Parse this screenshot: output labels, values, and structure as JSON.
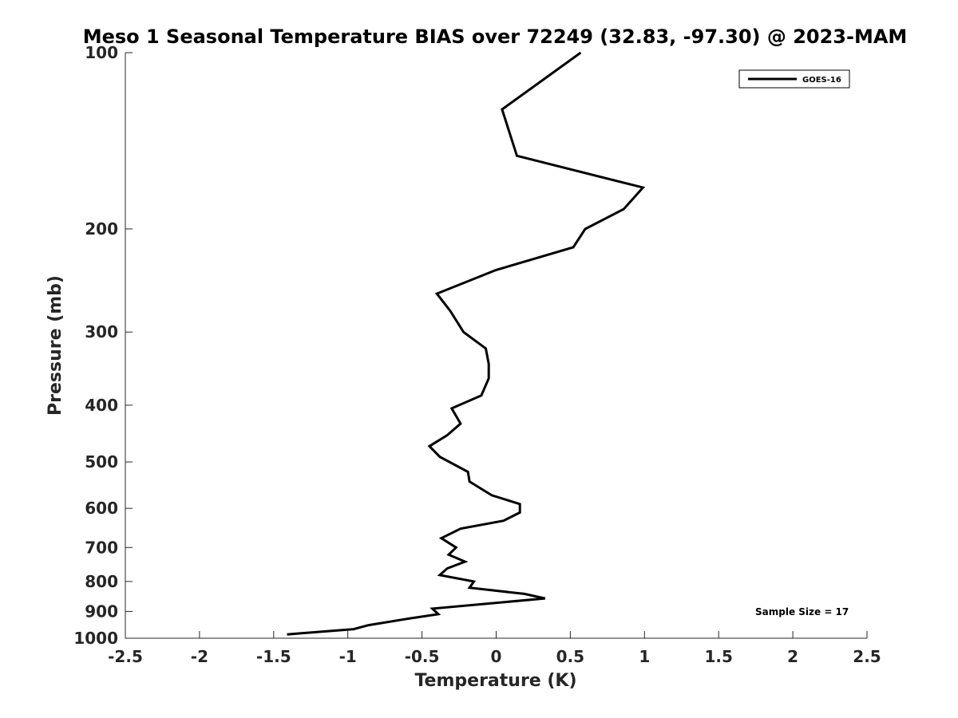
{
  "chart_data": {
    "type": "line",
    "title": "Meso 1 Seasonal Temperature BIAS over 72249 (32.83, -97.30) @ 2023-MAM",
    "xlabel": "Temperature (K)",
    "ylabel": "Pressure (mb)",
    "xlim": [
      -2.5,
      2.5
    ],
    "ylim": [
      1000,
      100
    ],
    "y_scale": "log",
    "y_reversed": true,
    "x_ticks": [
      "-2.5",
      "-2",
      "-1.5",
      "-1",
      "-0.5",
      "0",
      "0.5",
      "1",
      "1.5",
      "2",
      "2.5"
    ],
    "y_ticks": [
      "100",
      "200",
      "300",
      "400",
      "500",
      "600",
      "700",
      "800",
      "900",
      "1000"
    ],
    "grid": false,
    "legend": {
      "position": "top-right",
      "entries": [
        "GOES-16"
      ]
    },
    "annotation": "Sample Size = 17",
    "series": [
      {
        "name": "GOES-16",
        "color": "#000000",
        "points": [
          [
            0.57,
            100
          ],
          [
            0.04,
            125
          ],
          [
            0.14,
            150
          ],
          [
            0.99,
            170
          ],
          [
            0.86,
            185
          ],
          [
            0.6,
            200
          ],
          [
            0.52,
            215
          ],
          [
            0.0,
            235
          ],
          [
            -0.4,
            258
          ],
          [
            -0.31,
            276
          ],
          [
            -0.22,
            300
          ],
          [
            -0.07,
            320
          ],
          [
            -0.05,
            340
          ],
          [
            -0.05,
            360
          ],
          [
            -0.1,
            385
          ],
          [
            -0.3,
            405
          ],
          [
            -0.24,
            430
          ],
          [
            -0.33,
            450
          ],
          [
            -0.45,
            470
          ],
          [
            -0.38,
            490
          ],
          [
            -0.19,
            520
          ],
          [
            -0.18,
            540
          ],
          [
            -0.03,
            570
          ],
          [
            0.16,
            590
          ],
          [
            0.16,
            610
          ],
          [
            0.05,
            630
          ],
          [
            -0.24,
            650
          ],
          [
            -0.37,
            675
          ],
          [
            -0.27,
            700
          ],
          [
            -0.32,
            720
          ],
          [
            -0.21,
            740
          ],
          [
            -0.33,
            760
          ],
          [
            -0.38,
            780
          ],
          [
            -0.15,
            800
          ],
          [
            -0.18,
            820
          ],
          [
            0.19,
            840
          ],
          [
            0.33,
            855
          ],
          [
            -0.43,
            890
          ],
          [
            -0.39,
            910
          ],
          [
            -0.58,
            925
          ],
          [
            -0.86,
            950
          ],
          [
            -0.96,
            965
          ],
          [
            -1.41,
            985
          ]
        ]
      }
    ]
  }
}
